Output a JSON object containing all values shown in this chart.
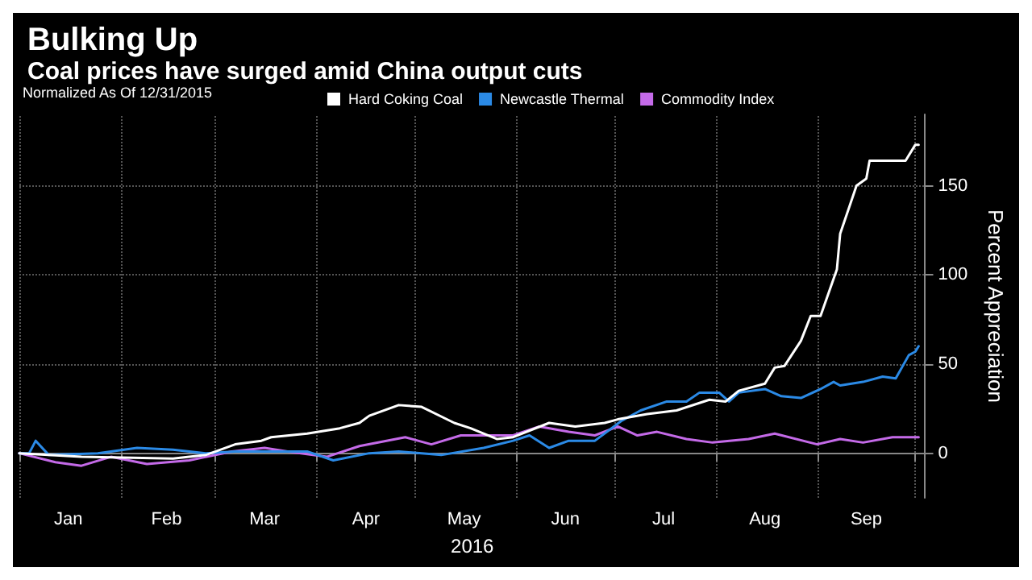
{
  "chart_data": {
    "type": "line",
    "title": "Bulking Up",
    "subtitle": "Coal prices have surged amid China output cuts",
    "legend_title": "Normalized As Of 12/31/2015",
    "xlabel": "2016",
    "ylabel": "Percent Appreciation",
    "series": [
      {
        "name": "Hard Coking Coal",
        "color": "#ffffff",
        "x": [
          "2016-01-01",
          "2016-01-20",
          "2016-02-17",
          "2016-02-27",
          "2016-03-07",
          "2016-03-15",
          "2016-03-18",
          "2016-03-29",
          "2016-04-08",
          "2016-04-14",
          "2016-04-17",
          "2016-04-26",
          "2016-05-03",
          "2016-05-13",
          "2016-05-18",
          "2016-05-26",
          "2016-05-31",
          "2016-06-11",
          "2016-06-19",
          "2016-06-28",
          "2016-07-02",
          "2016-07-11",
          "2016-07-20",
          "2016-07-30",
          "2016-08-04",
          "2016-08-08",
          "2016-08-16",
          "2016-08-19",
          "2016-08-22",
          "2016-08-27",
          "2016-08-30",
          "2016-09-02",
          "2016-09-07",
          "2016-09-08",
          "2016-09-13",
          "2016-09-16",
          "2016-09-17",
          "2016-09-28",
          "2016-10-01",
          "2016-10-02"
        ],
        "values": [
          0,
          -2,
          -3,
          -1,
          5,
          7,
          9,
          11,
          14,
          17,
          21,
          27,
          26,
          17,
          14,
          8,
          9,
          17,
          15,
          17,
          19,
          22,
          24,
          30,
          29,
          35,
          39,
          48,
          49,
          63,
          77,
          77,
          103,
          123,
          150,
          154,
          164,
          164,
          173,
          173
        ]
      },
      {
        "name": "Newcastle Thermal",
        "color": "#2b8ae6",
        "x": [
          "2016-01-01",
          "2016-01-04",
          "2016-01-06",
          "2016-01-10",
          "2016-01-25",
          "2016-02-06",
          "2016-02-17",
          "2016-02-27",
          "2016-03-07",
          "2016-03-29",
          "2016-04-06",
          "2016-04-17",
          "2016-04-26",
          "2016-05-09",
          "2016-05-22",
          "2016-05-31",
          "2016-06-05",
          "2016-06-11",
          "2016-06-17",
          "2016-06-25",
          "2016-07-03",
          "2016-07-09",
          "2016-07-17",
          "2016-07-23",
          "2016-07-27",
          "2016-08-02",
          "2016-08-05",
          "2016-08-08",
          "2016-08-16",
          "2016-08-21",
          "2016-08-27",
          "2016-09-02",
          "2016-09-06",
          "2016-09-08",
          "2016-09-15",
          "2016-09-21",
          "2016-09-25",
          "2016-09-29",
          "2016-10-01",
          "2016-10-02"
        ],
        "values": [
          0,
          0,
          7,
          -1,
          0,
          3,
          2,
          0,
          1,
          1,
          -4,
          0,
          1,
          -1,
          3,
          7,
          10,
          3,
          7,
          7,
          18,
          24,
          29,
          29,
          34,
          34,
          29,
          34,
          36,
          32,
          31,
          36,
          40,
          38,
          40,
          43,
          42,
          55,
          57,
          60
        ]
      },
      {
        "name": "Commodity Index",
        "color": "#c46ae8",
        "x": [
          "2016-01-01",
          "2016-01-12",
          "2016-01-20",
          "2016-01-29",
          "2016-02-09",
          "2016-02-22",
          "2016-03-06",
          "2016-03-16",
          "2016-03-23",
          "2016-04-04",
          "2016-04-14",
          "2016-04-28",
          "2016-05-06",
          "2016-05-15",
          "2016-05-31",
          "2016-06-08",
          "2016-06-17",
          "2016-06-25",
          "2016-07-02",
          "2016-07-08",
          "2016-07-14",
          "2016-07-23",
          "2016-07-31",
          "2016-08-11",
          "2016-08-19",
          "2016-09-01",
          "2016-09-08",
          "2016-09-15",
          "2016-09-24",
          "2016-10-02"
        ],
        "values": [
          0,
          -5,
          -7,
          -2,
          -6,
          -4,
          1,
          3,
          1,
          -2,
          4,
          9,
          5,
          10,
          10,
          15,
          12,
          10,
          15,
          10,
          12,
          8,
          6,
          8,
          11,
          5,
          8,
          6,
          9,
          9
        ]
      }
    ],
    "xlim": [
      "2016-01-01",
      "2016-10-04"
    ],
    "xticks": [
      {
        "value": "2016-01-01",
        "label": null
      },
      {
        "value": "2016-01-16",
        "label": "Jan"
      },
      {
        "value": "2016-02-01",
        "label": null
      },
      {
        "value": "2016-02-15",
        "label": "Feb"
      },
      {
        "value": "2016-03-01",
        "label": null
      },
      {
        "value": "2016-03-16",
        "label": "Mar"
      },
      {
        "value": "2016-04-01",
        "label": null
      },
      {
        "value": "2016-04-16",
        "label": "Apr"
      },
      {
        "value": "2016-05-01",
        "label": null
      },
      {
        "value": "2016-05-16",
        "label": "May"
      },
      {
        "value": "2016-06-01",
        "label": null
      },
      {
        "value": "2016-06-16",
        "label": "Jun"
      },
      {
        "value": "2016-07-01",
        "label": null
      },
      {
        "value": "2016-07-16",
        "label": "Jul"
      },
      {
        "value": "2016-08-01",
        "label": null
      },
      {
        "value": "2016-08-16",
        "label": "Aug"
      },
      {
        "value": "2016-09-01",
        "label": null
      },
      {
        "value": "2016-09-16",
        "label": "Sep"
      },
      {
        "value": "2016-10-01",
        "label": null
      }
    ],
    "ylim": [
      -25,
      190
    ],
    "yticks": [
      0,
      50,
      100,
      150
    ],
    "grid": true,
    "legend": "top",
    "marker": "none",
    "line_style": "solid"
  }
}
